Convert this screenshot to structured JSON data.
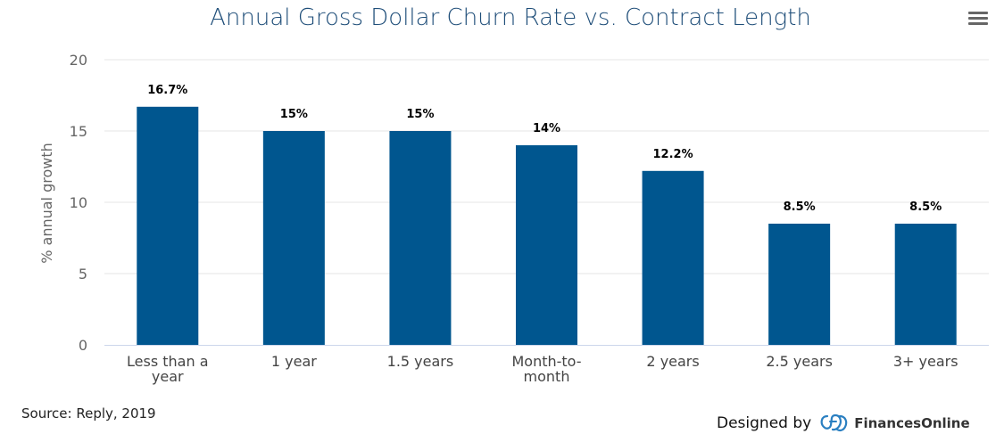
{
  "chart_data": {
    "type": "bar",
    "title": "Annual Gross Dollar Churn Rate vs. Contract Length",
    "xlabel": "",
    "ylabel": "% annual growth",
    "ylim": [
      0,
      20
    ],
    "yticks": [
      0,
      5,
      10,
      15,
      20
    ],
    "ytick_labels": [
      "0",
      "5",
      "10",
      "15",
      "20"
    ],
    "categories": [
      "Less than a year",
      "1 year",
      "1.5 years",
      "Month-to-month",
      "2 years",
      "2.5 years",
      "3+ years"
    ],
    "category_lines": [
      [
        "Less than a",
        "year"
      ],
      [
        "1 year"
      ],
      [
        "1.5 years"
      ],
      [
        "Month-to-",
        "month"
      ],
      [
        "2 years"
      ],
      [
        "2.5 years"
      ],
      [
        "3+ years"
      ]
    ],
    "values": [
      16.7,
      15,
      15,
      14,
      12.2,
      8.5,
      8.5
    ],
    "data_labels": [
      "16.7%",
      "15%",
      "15%",
      "14%",
      "12.2%",
      "8.5%",
      "8.5%"
    ],
    "bar_color": "#00568f",
    "grid": true
  },
  "footer": {
    "source": "Source: Reply, 2019",
    "designed_by": "Designed by",
    "brand": "FinancesOnline"
  },
  "menu": {
    "icon": "hamburger-menu-icon"
  }
}
